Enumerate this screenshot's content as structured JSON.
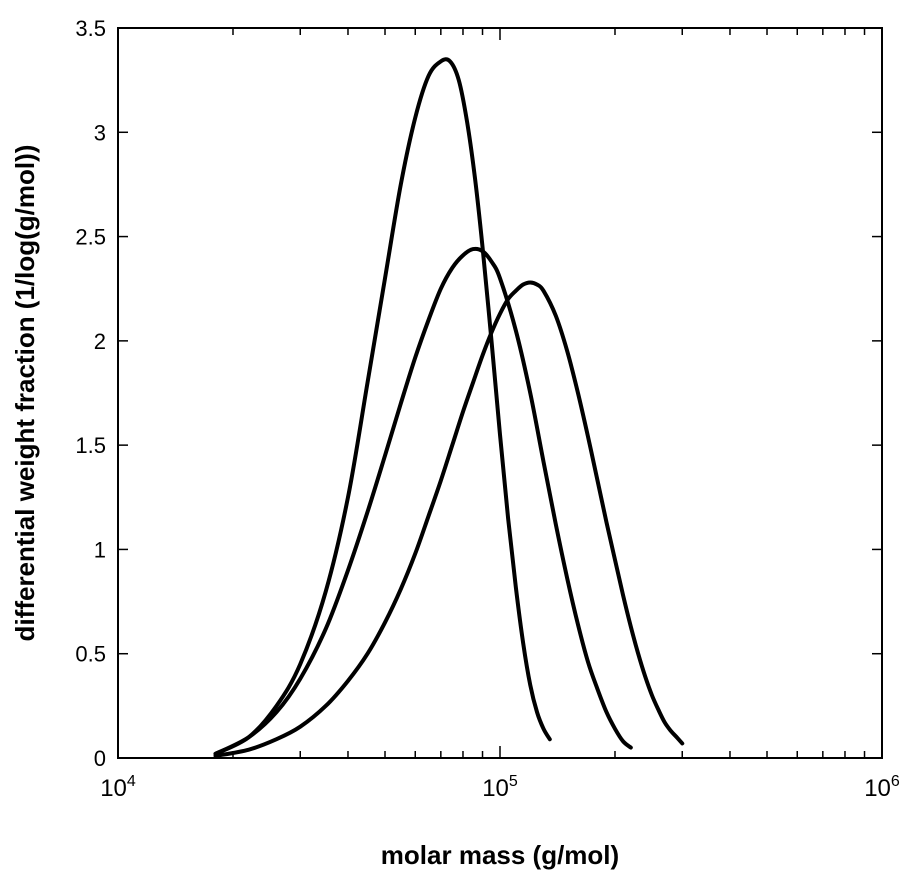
{
  "chart_data": {
    "type": "line",
    "xlabel": "molar mass (g/mol)",
    "ylabel": "differential weight fraction (1/log(g/mol))",
    "x_scale": "log",
    "xlim": [
      10000,
      1000000
    ],
    "ylim": [
      0,
      3.5
    ],
    "x_ticks": [
      {
        "value": 10000,
        "base": "10",
        "exp": "4"
      },
      {
        "value": 100000,
        "base": "10",
        "exp": "5"
      },
      {
        "value": 1000000,
        "base": "10",
        "exp": "6"
      }
    ],
    "y_ticks": [
      "0",
      "0.5",
      "1",
      "1.5",
      "2",
      "2.5",
      "3",
      "3.5"
    ],
    "grid": false,
    "legend": "none",
    "series": [
      {
        "x": [
          18000,
          22000,
          26000,
          30000,
          35000,
          40000,
          45000,
          50000,
          55000,
          60000,
          65000,
          70000,
          74000,
          78000,
          82000,
          86000,
          90000,
          95000,
          100000,
          105000,
          110000,
          115000,
          120000,
          125000,
          130000,
          135000
        ],
        "values": [
          0.02,
          0.1,
          0.25,
          0.45,
          0.8,
          1.25,
          1.8,
          2.3,
          2.75,
          3.07,
          3.27,
          3.34,
          3.34,
          3.25,
          3.05,
          2.78,
          2.45,
          2.0,
          1.55,
          1.15,
          0.82,
          0.55,
          0.35,
          0.22,
          0.14,
          0.09
        ]
      },
      {
        "x": [
          18000,
          22000,
          26000,
          30000,
          35000,
          40000,
          45000,
          50000,
          55000,
          60000,
          65000,
          70000,
          75000,
          80000,
          85000,
          90000,
          95000,
          100000,
          110000,
          120000,
          130000,
          140000,
          150000,
          160000,
          170000,
          180000,
          190000,
          200000,
          210000,
          220000
        ],
        "values": [
          0.02,
          0.1,
          0.22,
          0.38,
          0.62,
          0.9,
          1.18,
          1.45,
          1.7,
          1.92,
          2.1,
          2.25,
          2.35,
          2.41,
          2.44,
          2.43,
          2.38,
          2.3,
          2.05,
          1.75,
          1.42,
          1.12,
          0.86,
          0.64,
          0.46,
          0.33,
          0.22,
          0.14,
          0.08,
          0.05
        ]
      },
      {
        "x": [
          18000,
          22000,
          26000,
          30000,
          35000,
          40000,
          45000,
          50000,
          55000,
          60000,
          65000,
          70000,
          75000,
          80000,
          85000,
          90000,
          95000,
          100000,
          105000,
          110000,
          115000,
          120000,
          125000,
          130000,
          140000,
          150000,
          160000,
          170000,
          180000,
          190000,
          200000,
          210000,
          220000,
          230000,
          240000,
          250000,
          260000,
          270000,
          280000,
          290000,
          300000
        ],
        "values": [
          0.01,
          0.04,
          0.09,
          0.15,
          0.25,
          0.37,
          0.5,
          0.65,
          0.81,
          0.98,
          1.16,
          1.33,
          1.5,
          1.66,
          1.8,
          1.93,
          2.04,
          2.13,
          2.2,
          2.24,
          2.27,
          2.28,
          2.27,
          2.24,
          2.12,
          1.95,
          1.75,
          1.54,
          1.33,
          1.13,
          0.95,
          0.78,
          0.63,
          0.5,
          0.39,
          0.3,
          0.23,
          0.17,
          0.13,
          0.1,
          0.07
        ]
      }
    ]
  }
}
